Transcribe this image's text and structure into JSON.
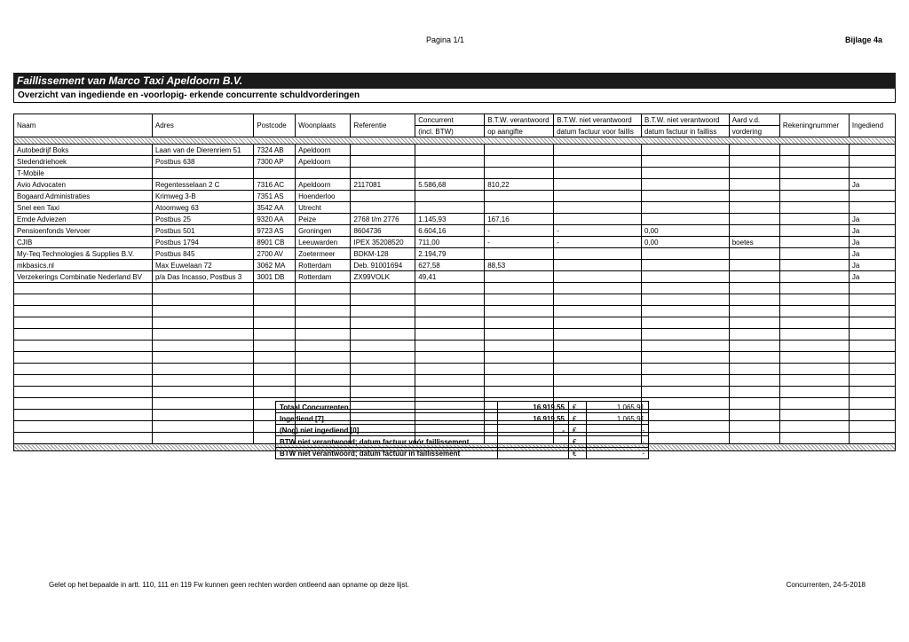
{
  "header": {
    "pagina": "Pagina 1/1",
    "bijlage": "Bijlage 4a"
  },
  "title": "Faillissement van Marco Taxi Apeldoorn B.V.",
  "subtitle": "Overzicht van ingediende en -voorlopig- erkende concurrente schuldvorderingen",
  "columns": {
    "naam": "Naam",
    "adres": "Adres",
    "postcode": "Postcode",
    "woonplaats": "Woonplaats",
    "referentie": "Referentie",
    "concurrent_top": "Concurrent",
    "concurrent": "(incl. BTW)",
    "btw_ver_top": "B.T.W. verantwoord",
    "btw_ver": "op aangifte",
    "btw_niet1_top": "B.T.W. niet verantwoord",
    "btw_niet1": "datum factuur voor faillis",
    "btw_niet2_top": "B.T.W. niet verantwoord",
    "btw_niet2": "datum factuur in failliss",
    "aard_top": "Aard v.d.",
    "aard": "vordering",
    "rekening": "Rekeningnummer",
    "ingediend": "Ingediend"
  },
  "col_widths": [
    "150",
    "110",
    "45",
    "60",
    "70",
    "75",
    "75",
    "95",
    "95",
    "55",
    "75",
    "50"
  ],
  "rows": [
    {
      "naam": "Autobedrijf Boks",
      "adres": "Laan van de Dierenriem 51",
      "postcode": "7324 AB",
      "woonplaats": "Apeldoorn",
      "referentie": "",
      "concurrent": "",
      "btw_ver": "",
      "btw_niet1": "",
      "btw_niet2": "",
      "aard": "",
      "rekening": "",
      "ingediend": ""
    },
    {
      "naam": "Stedendriehoek",
      "adres": "Postbus 638",
      "postcode": "7300 AP",
      "woonplaats": "Apeldoorn",
      "referentie": "",
      "concurrent": "",
      "btw_ver": "",
      "btw_niet1": "",
      "btw_niet2": "",
      "aard": "",
      "rekening": "",
      "ingediend": ""
    },
    {
      "naam": "T-Mobile",
      "adres": "",
      "postcode": "",
      "woonplaats": "",
      "referentie": "",
      "concurrent": "",
      "btw_ver": "",
      "btw_niet1": "",
      "btw_niet2": "",
      "aard": "",
      "rekening": "",
      "ingediend": ""
    },
    {
      "naam": "Avio Advocaten",
      "adres": "Regentesselaan 2 C",
      "postcode": "7316 AC",
      "woonplaats": "Apeldoorn",
      "referentie": "2117081",
      "concurrent": "5.586,68",
      "btw_ver": "810,22",
      "btw_niet1": "",
      "btw_niet2": "",
      "aard": "",
      "rekening": "",
      "ingediend": "Ja"
    },
    {
      "naam": "Bogaard Administraties",
      "adres": "Krimweg 3-B",
      "postcode": "7351 AS",
      "woonplaats": "Hoenderloo",
      "referentie": "",
      "concurrent": "",
      "btw_ver": "",
      "btw_niet1": "",
      "btw_niet2": "",
      "aard": "",
      "rekening": "",
      "ingediend": ""
    },
    {
      "naam": "Snel een Taxi",
      "adres": "Atoomweg 63",
      "postcode": "3542 AA",
      "woonplaats": "Utrecht",
      "referentie": "",
      "concurrent": "",
      "btw_ver": "",
      "btw_niet1": "",
      "btw_niet2": "",
      "aard": "",
      "rekening": "",
      "ingediend": ""
    },
    {
      "naam": "Emde Adviezen",
      "adres": "Postbus 25",
      "postcode": "9320 AA",
      "woonplaats": "Peize",
      "referentie": "2768 t/m 2776",
      "concurrent": "1.145,93",
      "btw_ver": "167,16",
      "btw_niet1": "",
      "btw_niet2": "",
      "aard": "",
      "rekening": "",
      "ingediend": "Ja"
    },
    {
      "naam": "Pensioenfonds Vervoer",
      "adres": "Postbus 501",
      "postcode": "9723 AS",
      "woonplaats": "Groningen",
      "referentie": "8604736",
      "concurrent": "6.604,16",
      "btw_ver": "-",
      "btw_niet1": "-",
      "btw_niet2": "0,00",
      "aard": "",
      "rekening": "",
      "ingediend": "Ja"
    },
    {
      "naam": "CJIB",
      "adres": "Postbus 1794",
      "postcode": "8901 CB",
      "woonplaats": "Leeuwarden",
      "referentie": "IPEX 35208520",
      "concurrent": "711,00",
      "btw_ver": "-",
      "btw_niet1": "-",
      "btw_niet2": "0,00",
      "aard": "boetes",
      "rekening": "",
      "ingediend": "Ja"
    },
    {
      "naam": "My-Teq Technologies & Supplies B.V.",
      "adres": "Postbus 845",
      "postcode": "2700 AV",
      "woonplaats": "Zoetermeer",
      "referentie": "BDKM-128",
      "concurrent": "2.194,79",
      "btw_ver": "",
      "btw_niet1": "",
      "btw_niet2": "",
      "aard": "",
      "rekening": "",
      "ingediend": "Ja"
    },
    {
      "naam": "mkbasics.nl",
      "adres": "Max Euwelaan 72",
      "postcode": "3062 MA",
      "woonplaats": "Rotterdam",
      "referentie": "Deb. 91001694",
      "concurrent": "627,58",
      "btw_ver": "88,53",
      "btw_niet1": "",
      "btw_niet2": "",
      "aard": "",
      "rekening": "",
      "ingediend": "Ja"
    },
    {
      "naam": "Verzekerings Combinatie Nederland BV",
      "adres": "p/a Das Incasso, Postbus 3",
      "postcode": "3001 DB",
      "woonplaats": "Rotterdam",
      "referentie": "ZX99VOLK",
      "concurrent": "49,41",
      "btw_ver": "",
      "btw_niet1": "",
      "btw_niet2": "",
      "aard": "",
      "rekening": "",
      "ingediend": "Ja"
    }
  ],
  "empty_rows_block1": 5,
  "empty_rows_block2": 9,
  "summary": [
    {
      "label": "Totaal Concurrenten",
      "v1": "16.919,55",
      "cur": "€",
      "v2": "1.065,91"
    },
    {
      "label": "Ingediend [7]",
      "v1": "16.919,55",
      "cur": "€",
      "v2": "1.065,91"
    },
    {
      "label": "(Nog) niet ingediend [0]",
      "v1": "-",
      "cur": "€",
      "v2": "-"
    },
    {
      "label": "BTW niet verantwoord; datum factuur vóór faillissement",
      "v1": "",
      "cur": "€",
      "v2": "-"
    },
    {
      "label": "BTW niet verantwoord; datum factuur in faillissement",
      "v1": "",
      "cur": "€",
      "v2": "-"
    }
  ],
  "footer": {
    "left": "Gelet op het bepaalde in artt. 110, 111 en 119 Fw kunnen geen rechten worden ontleend aan opname op deze lijst.",
    "right": "Concurrenten, 24-5-2018"
  }
}
